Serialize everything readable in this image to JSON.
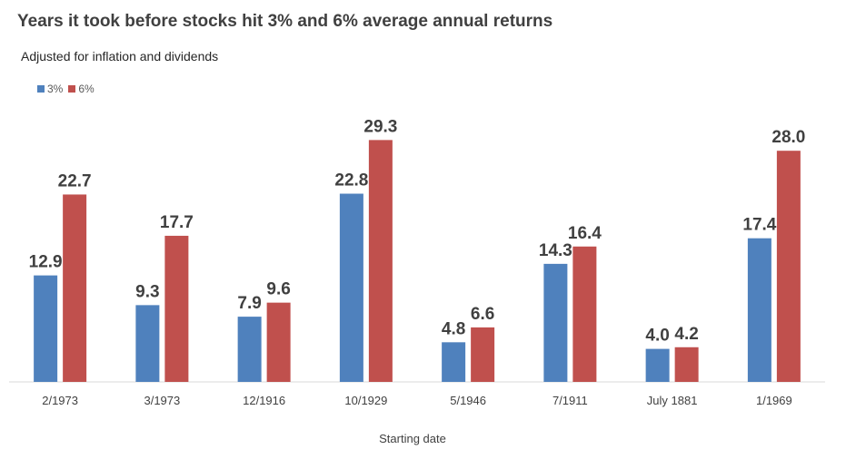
{
  "colors": {
    "series_3pct": "#4F81BD",
    "series_6pct": "#C0504D",
    "axis": "#D9D9D9"
  },
  "chart_data": {
    "type": "bar",
    "title": "Years it took before stocks hit 3% and 6% average annual returns",
    "subtitle": "Adjusted for inflation and dividends",
    "xlabel": "Starting date",
    "ylabel": "",
    "categories": [
      "2/1973",
      "3/1973",
      "12/1916",
      "10/1929",
      "5/1946",
      "7/1911",
      "July 1881",
      "1/1969"
    ],
    "series": [
      {
        "name": "3%",
        "color": "#4F81BD",
        "values": [
          12.9,
          9.3,
          7.9,
          22.8,
          4.8,
          14.3,
          4.0,
          17.4
        ]
      },
      {
        "name": "6%",
        "color": "#C0504D",
        "values": [
          22.7,
          17.7,
          9.6,
          29.3,
          6.6,
          16.4,
          4.2,
          28.0
        ]
      }
    ],
    "data_labels": true,
    "ylim": [
      0,
      30
    ],
    "grid": false,
    "legend_position": "top-left"
  }
}
